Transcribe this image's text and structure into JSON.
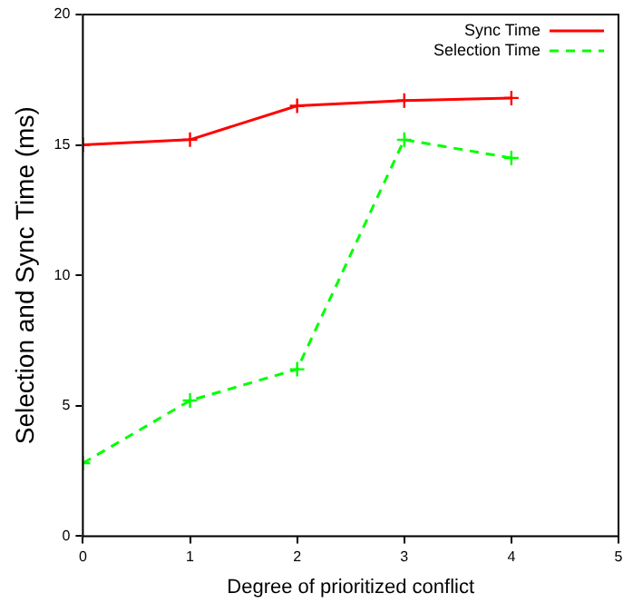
{
  "chart_data": {
    "type": "line",
    "xlabel": "Degree of prioritized conflict",
    "ylabel": "Selection and Sync Time (ms)",
    "x": [
      0,
      1,
      2,
      3,
      4
    ],
    "series": [
      {
        "name": "Sync Time",
        "color": "#ff0000",
        "values": [
          15.0,
          15.2,
          16.5,
          16.7,
          16.8
        ],
        "marker": "cross",
        "line_style": "solid"
      },
      {
        "name": "Selection Time",
        "color": "#00ff00",
        "values": [
          2.8,
          5.2,
          6.4,
          15.2,
          14.5
        ],
        "marker": "cross",
        "line_style": "dashed"
      }
    ],
    "xlim": [
      0,
      5
    ],
    "xticks": [
      0,
      1,
      2,
      3,
      4,
      5
    ],
    "ylim": [
      0,
      20
    ],
    "yticks": [
      0,
      5,
      10,
      15,
      20
    ],
    "grid": false,
    "legend": "top right"
  }
}
